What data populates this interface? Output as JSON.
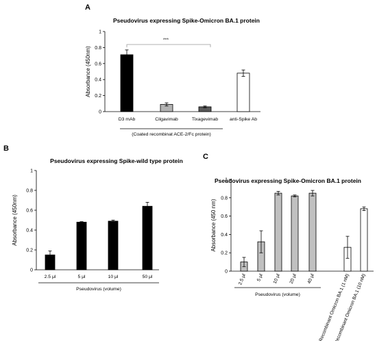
{
  "chart_data": [
    {
      "panel": "A",
      "type": "bar",
      "title": "Pseudovirus expressing Spike-Omicron BA.1 protein",
      "ylabel": "Absorbance (450nm)",
      "ylim": [
        0,
        1
      ],
      "yticks": [
        "0",
        "0.2",
        "0.4",
        "0.6",
        "0.8",
        "1"
      ],
      "categories": [
        "D3 mAb",
        "Cilgavimab",
        "Tixagevimab",
        "anti-Spike Ab"
      ],
      "values": [
        0.71,
        0.09,
        0.06,
        0.48
      ],
      "errors": [
        0.06,
        0.02,
        0.01,
        0.04
      ],
      "colors": [
        "#000000",
        "#b3b3b3",
        "#595959",
        "#ffffff"
      ],
      "significance": "***",
      "group_label": "(Coated recombinat ACE-2/Fc protein)"
    },
    {
      "panel": "B",
      "type": "bar",
      "title": "Pseudovirus expressing Spike-wild type protein",
      "ylabel": "Absorbance (450nm)",
      "ylim": [
        0,
        1
      ],
      "yticks": [
        "0",
        "0.2",
        "0.4",
        "0.6",
        "0.8",
        "1"
      ],
      "categories": [
        "2.5 μl",
        "5 μl",
        "10 μl",
        "50 μl"
      ],
      "values": [
        0.15,
        0.48,
        0.49,
        0.64
      ],
      "errors": [
        0.04,
        0.005,
        0.01,
        0.04
      ],
      "colors": [
        "#000000",
        "#000000",
        "#000000",
        "#000000"
      ],
      "group_label": "Pseudovirus (volume)"
    },
    {
      "panel": "C",
      "type": "bar",
      "title": "Pseudovirus expressing Spike-Omicron BA.1 protein",
      "ylabel": "Absorbance (450 nm)",
      "ylim": [
        0,
        1
      ],
      "yticks": [
        "0",
        "0.2",
        "0.4",
        "0.6",
        "0.8",
        "1"
      ],
      "categories": [
        "2.5 μl",
        "5 μl",
        "10 μl",
        "20 μl",
        "40 μl",
        "Recombinant Omicron BA.1 (1 nM)",
        "Recombinant Omicron BA.1 (10 nM)"
      ],
      "values": [
        0.1,
        0.32,
        0.85,
        0.82,
        0.85,
        0.26,
        0.68
      ],
      "errors": [
        0.05,
        0.12,
        0.02,
        0.01,
        0.03,
        0.12,
        0.02
      ],
      "colors": [
        "#c0c0c0",
        "#c0c0c0",
        "#c0c0c0",
        "#c0c0c0",
        "#c0c0c0",
        "#ffffff",
        "#ffffff"
      ],
      "group_label": "Pseudovirus (volume)"
    }
  ]
}
